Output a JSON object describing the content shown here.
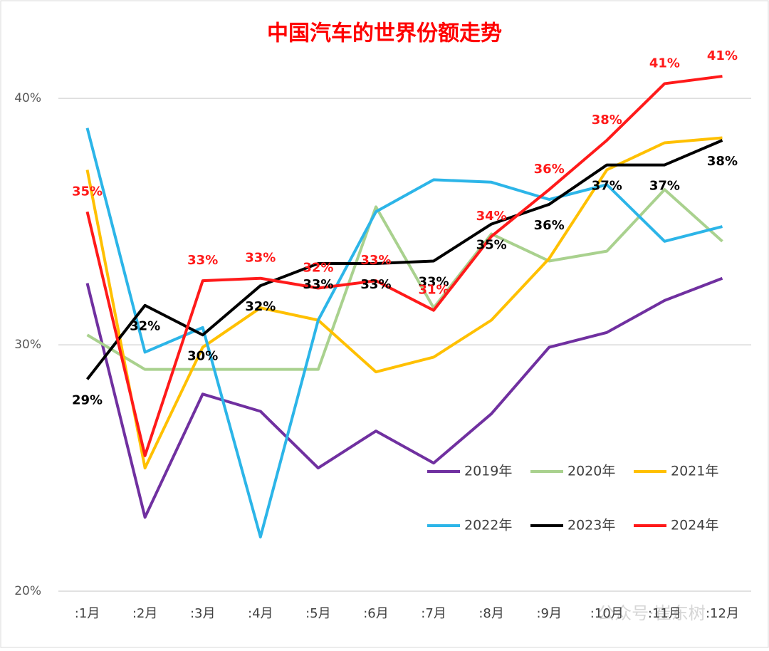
{
  "chart_data": {
    "type": "line",
    "title": "中国汽车的世界份额走势",
    "categories": [
      ":1月",
      ":2月",
      ":3月",
      ":4月",
      ":5月",
      ":6月",
      ":7月",
      ":8月",
      ":9月",
      ":10月",
      ":11月",
      ":12月"
    ],
    "ylim": [
      20,
      42
    ],
    "yticks": [
      {
        "value": 20,
        "label": "20%"
      },
      {
        "value": 30,
        "label": "30%"
      },
      {
        "value": 40,
        "label": "40%"
      }
    ],
    "grid": true,
    "watermark": "公众号·崔东树",
    "series": [
      {
        "name": "2019年",
        "color": "#7030a0",
        "values": [
          32.5,
          23.0,
          28.0,
          27.3,
          25.0,
          26.5,
          25.2,
          27.2,
          29.9,
          30.5,
          31.8,
          32.7
        ]
      },
      {
        "name": "2020年",
        "color": "#a9d18e",
        "values": [
          30.4,
          29.0,
          29.0,
          29.0,
          29.0,
          35.6,
          31.5,
          34.5,
          33.4,
          33.8,
          36.3,
          34.2
        ]
      },
      {
        "name": "2021年",
        "color": "#ffc000",
        "values": [
          37.1,
          25.0,
          29.9,
          31.5,
          31.0,
          28.9,
          29.5,
          31.0,
          33.5,
          37.1,
          38.2,
          38.4
        ]
      },
      {
        "name": "2022年",
        "color": "#2cb5e8",
        "values": [
          38.8,
          29.7,
          30.7,
          22.2,
          31.0,
          35.4,
          36.7,
          36.6,
          35.9,
          36.5,
          34.2,
          34.8
        ]
      },
      {
        "name": "2023年",
        "color": "#000000",
        "values": [
          28.6,
          31.6,
          30.4,
          32.4,
          33.3,
          33.3,
          33.4,
          34.9,
          35.7,
          37.3,
          37.3,
          38.3
        ],
        "value_labels": [
          "29%",
          "32%",
          "30%",
          "32%",
          "33%",
          "33%",
          "33%",
          "35%",
          "36%",
          "37%",
          "37%",
          "38%"
        ]
      },
      {
        "name": "2024年",
        "color": "#ff1a1a",
        "values": [
          35.4,
          25.5,
          32.6,
          32.7,
          32.3,
          32.6,
          31.4,
          34.4,
          36.3,
          38.3,
          40.6,
          40.9
        ],
        "value_labels": [
          "35%",
          null,
          "33%",
          "33%",
          "32%",
          "33%",
          "31%",
          "34%",
          "36%",
          "38%",
          "41%",
          "41%"
        ]
      }
    ]
  }
}
